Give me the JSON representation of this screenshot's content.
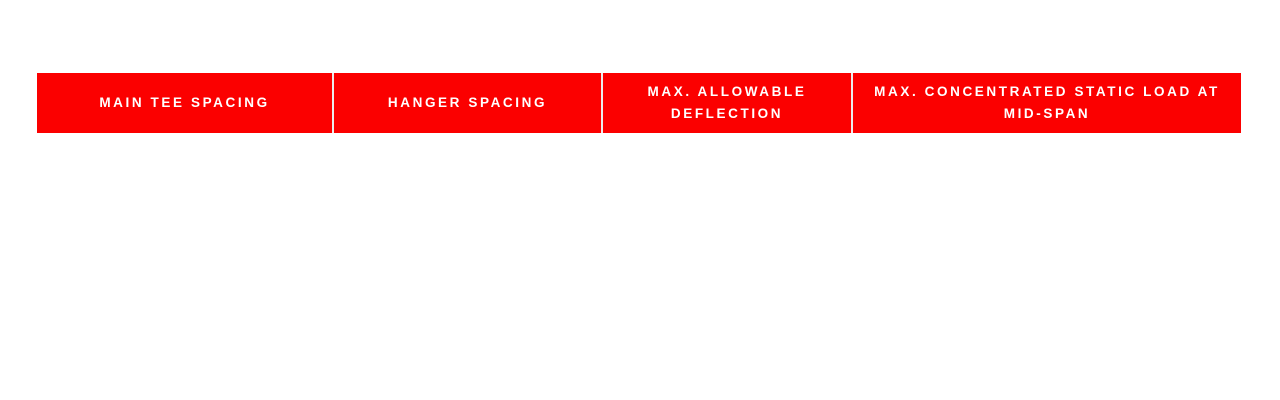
{
  "page": {
    "background": "#ffffff"
  },
  "colors": {
    "header_bg": "#fb0000",
    "header_text": "#ffffff",
    "divider": "#ececec"
  },
  "table": {
    "columns": [
      {
        "id": "main-tee-spacing",
        "label": "MAIN TEE SPACING"
      },
      {
        "id": "hanger-spacing",
        "label": "HANGER SPACING"
      },
      {
        "id": "max-allowable-deflection",
        "label": "MAX. ALLOWABLE DEFLECTION"
      },
      {
        "id": "max-concentrated-static-load-at-mid-span",
        "label": "MAX. CONCENTRATED STATIC LOAD AT MID-SPAN"
      }
    ]
  }
}
